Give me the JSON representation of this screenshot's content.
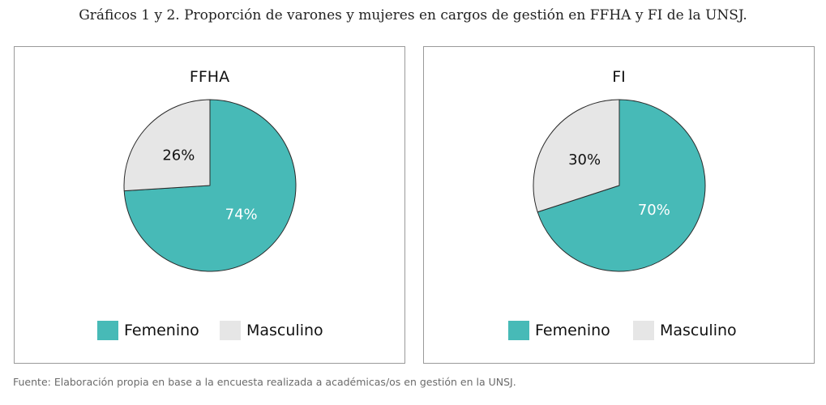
{
  "title": "Gráficos 1 y 2. Proporción de varones y mujeres en cargos de gestión en FFHA y FI de la UNSJ.",
  "source": "Fuente: Elaboración propia en base a la encuesta realizada a académicas/os en gestión en la UNSJ.",
  "colors": {
    "femenino": "#47bab7",
    "masculino": "#e6e6e6",
    "slice_stroke": "#2a2a2a",
    "label_on_femenino": "#ffffff",
    "label_on_masculino": "#111111"
  },
  "legend": [
    {
      "label": "Femenino",
      "color": "#47bab7"
    },
    {
      "label": "Masculino",
      "color": "#e6e6e6"
    }
  ],
  "chart_data": [
    {
      "type": "pie",
      "title": "FFHA",
      "categories": [
        "Femenino",
        "Masculino"
      ],
      "values": [
        74,
        26
      ],
      "labels": [
        "74%",
        "26%"
      ],
      "legend_position": "bottom"
    },
    {
      "type": "pie",
      "title": "FI",
      "categories": [
        "Femenino",
        "Masculino"
      ],
      "values": [
        70,
        30
      ],
      "labels": [
        "70%",
        "30%"
      ],
      "legend_position": "bottom"
    }
  ]
}
